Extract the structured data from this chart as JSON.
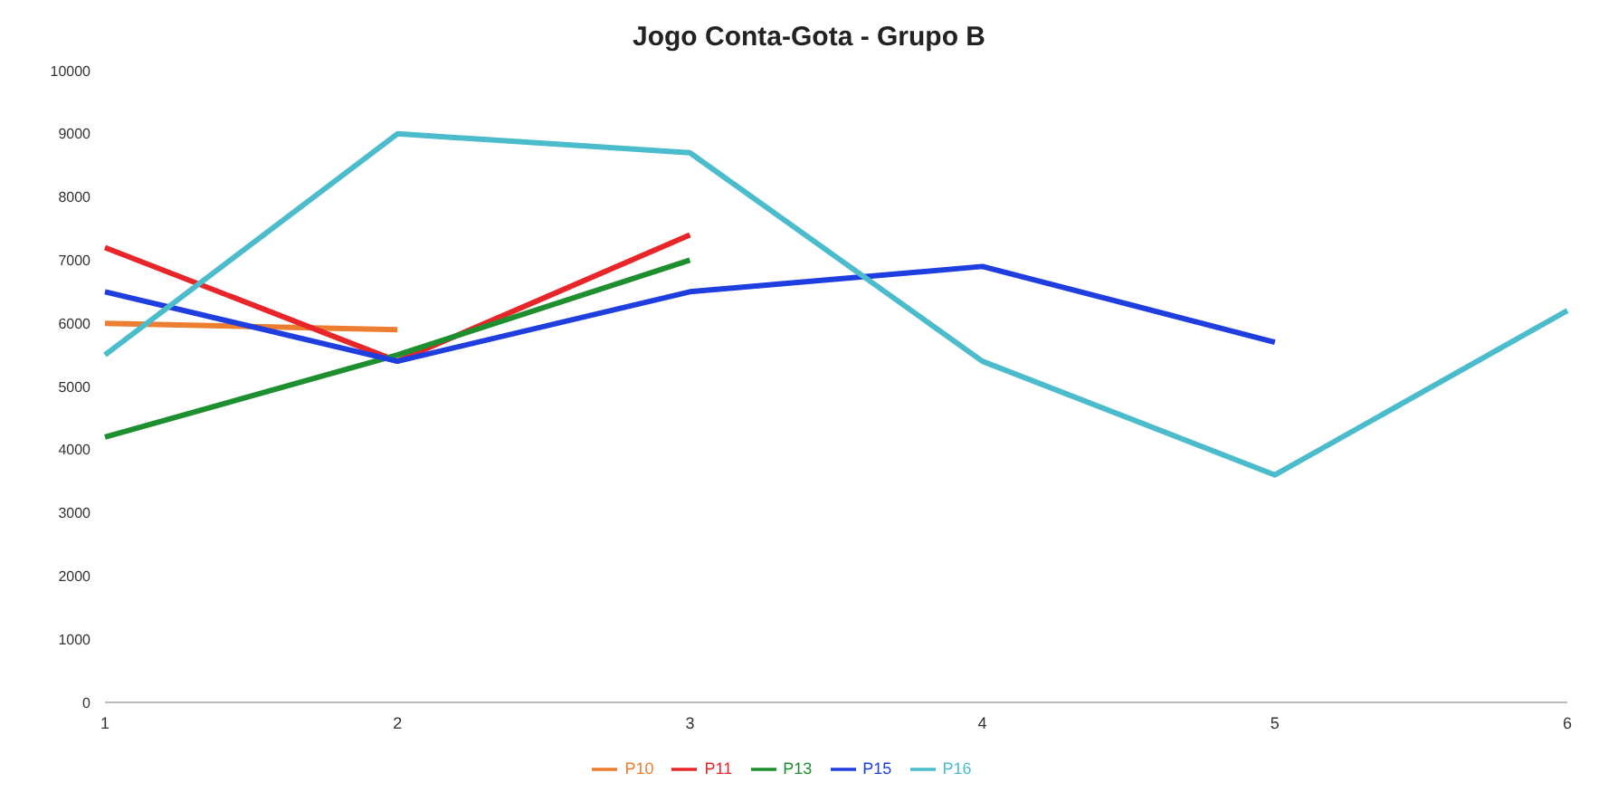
{
  "chart_data": {
    "type": "line",
    "title": "Jogo Conta-Gota - Grupo B",
    "categories": [
      "1",
      "2",
      "3",
      "4",
      "5",
      "6"
    ],
    "series": [
      {
        "name": "P10",
        "color": "#ed7d31",
        "values": [
          6000,
          5900,
          null,
          null,
          null,
          null
        ]
      },
      {
        "name": "P11",
        "color": "#e8262a",
        "values": [
          7200,
          5400,
          7400,
          null,
          null,
          null
        ]
      },
      {
        "name": "P13",
        "color": "#1e8f2e",
        "values": [
          4200,
          5500,
          7000,
          null,
          null,
          null
        ]
      },
      {
        "name": "P15",
        "color": "#1f3ee0",
        "values": [
          6500,
          5400,
          6500,
          6900,
          5700,
          null
        ]
      },
      {
        "name": "P16",
        "color": "#4bbccc",
        "values": [
          5500,
          9000,
          8700,
          5400,
          3600,
          6200
        ]
      }
    ],
    "ylim": [
      0,
      10000
    ],
    "yticks": [
      0,
      1000,
      2000,
      3000,
      4000,
      5000,
      6000,
      7000,
      8000,
      9000,
      10000
    ],
    "grid": false,
    "legend": "bottom",
    "marker": "none"
  }
}
